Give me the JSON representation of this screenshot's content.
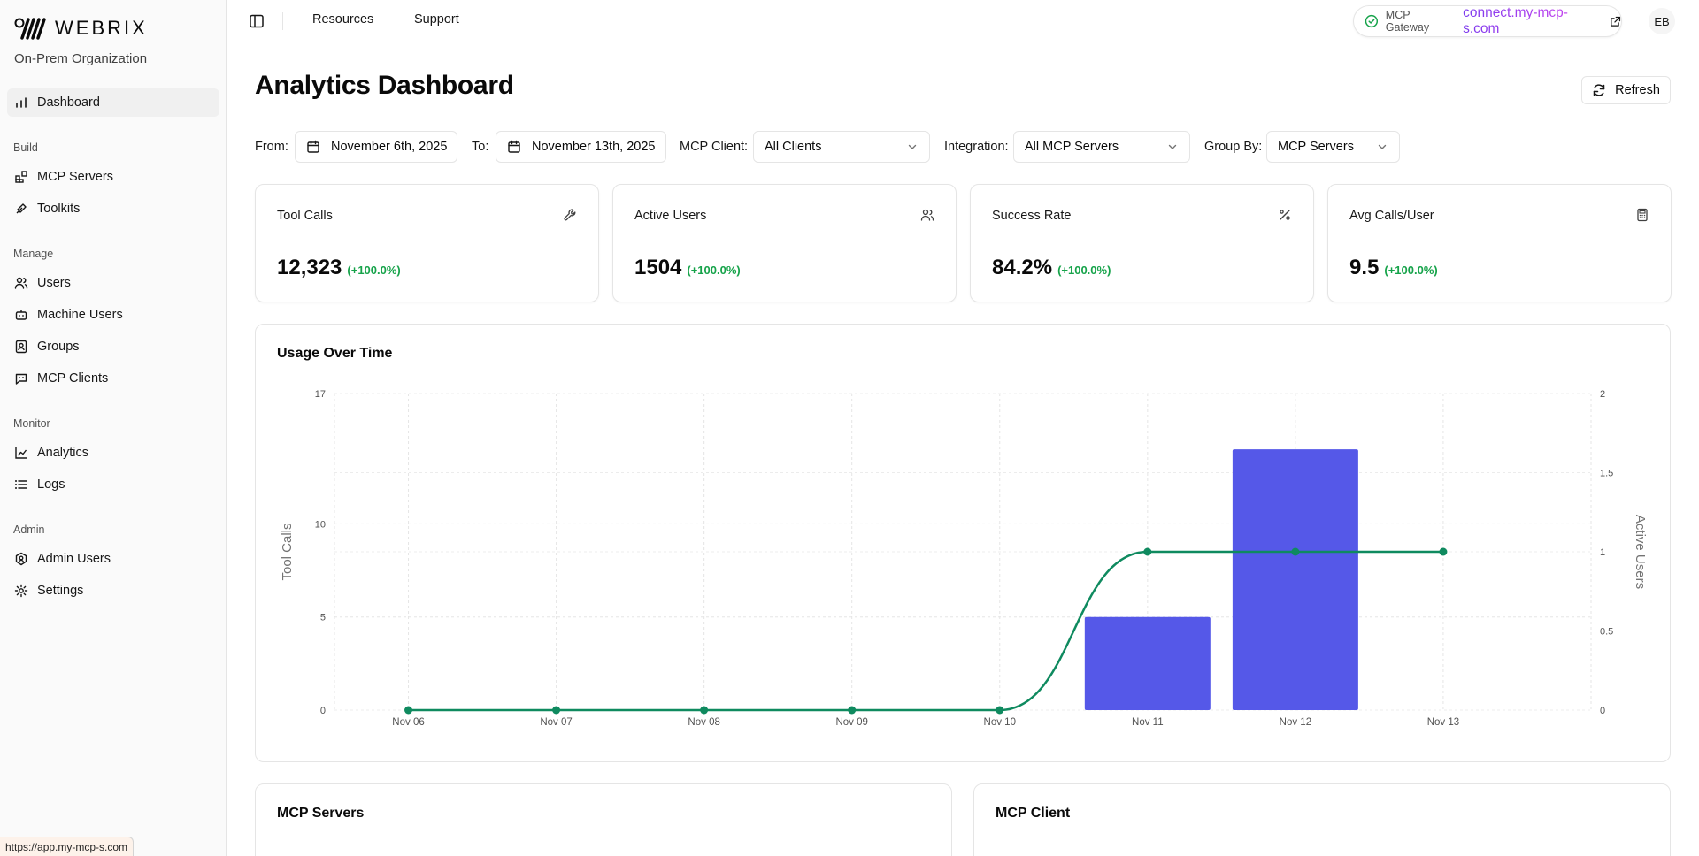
{
  "sidebar": {
    "brand": "WEBRIX",
    "org": "On-Prem Organization",
    "dashboard": "Dashboard",
    "sections": {
      "build": "Build",
      "manage": "Manage",
      "monitor": "Monitor",
      "admin": "Admin"
    },
    "items": {
      "mcp_servers": "MCP Servers",
      "toolkits": "Toolkits",
      "users": "Users",
      "machine_users": "Machine Users",
      "groups": "Groups",
      "mcp_clients": "MCP Clients",
      "analytics": "Analytics",
      "logs": "Logs",
      "admin_users": "Admin Users",
      "settings": "Settings"
    },
    "status_url": "https://app.my-mcp-s.com"
  },
  "topbar": {
    "resources": "Resources",
    "support": "Support",
    "gateway_label": "MCP Gateway",
    "gateway_url": "connect.my-mcp-s.com",
    "avatar": "EB"
  },
  "header": {
    "title": "Analytics Dashboard",
    "refresh": "Refresh"
  },
  "filters": {
    "from_label": "From:",
    "from_value": "November 6th, 2025",
    "to_label": "To:",
    "to_value": "November 13th, 2025",
    "client_label": "MCP Client:",
    "client_value": "All Clients",
    "integration_label": "Integration:",
    "integration_value": "All MCP Servers",
    "group_label": "Group By:",
    "group_value": "MCP Servers"
  },
  "stats": [
    {
      "title": "Tool Calls",
      "value": "12,323",
      "delta": "(+100.0%)",
      "icon": "wrench-icon"
    },
    {
      "title": "Active Users",
      "value": "1504",
      "delta": "(+100.0%)",
      "icon": "users-icon"
    },
    {
      "title": "Success Rate",
      "value": "84.2%",
      "delta": "(+100.0%)",
      "icon": "percent-icon"
    },
    {
      "title": "Avg Calls/User",
      "value": "9.5",
      "delta": "(+100.0%)",
      "icon": "calculator-icon"
    }
  ],
  "usage": {
    "title": "Usage Over Time"
  },
  "bottom": {
    "servers_title": "MCP Servers",
    "client_title": "MCP Client"
  },
  "colors": {
    "bar": "#5558e8",
    "line": "#0f8a5f",
    "positive": "#16a34a"
  },
  "chart_data": {
    "type": "bar",
    "title": "Usage Over Time",
    "categories": [
      "Nov 06",
      "Nov 07",
      "Nov 08",
      "Nov 09",
      "Nov 10",
      "Nov 11",
      "Nov 12",
      "Nov 13"
    ],
    "ylabel": "Tool Calls",
    "y2label": "Active Users",
    "ylim": [
      0,
      17
    ],
    "y2lim": [
      0,
      2
    ],
    "yticks": [
      "0",
      "5",
      "10",
      "17"
    ],
    "y2ticks": [
      "0",
      "0.5",
      "1",
      "1.5",
      "2"
    ],
    "grid": true,
    "series": [
      {
        "name": "Tool Calls",
        "type": "bar",
        "axis": "left",
        "values": [
          0,
          0,
          0,
          0,
          0,
          5,
          14,
          0
        ]
      },
      {
        "name": "Active Users",
        "type": "line",
        "axis": "right",
        "values": [
          0,
          0,
          0,
          0,
          0,
          1,
          1,
          1
        ]
      }
    ]
  }
}
